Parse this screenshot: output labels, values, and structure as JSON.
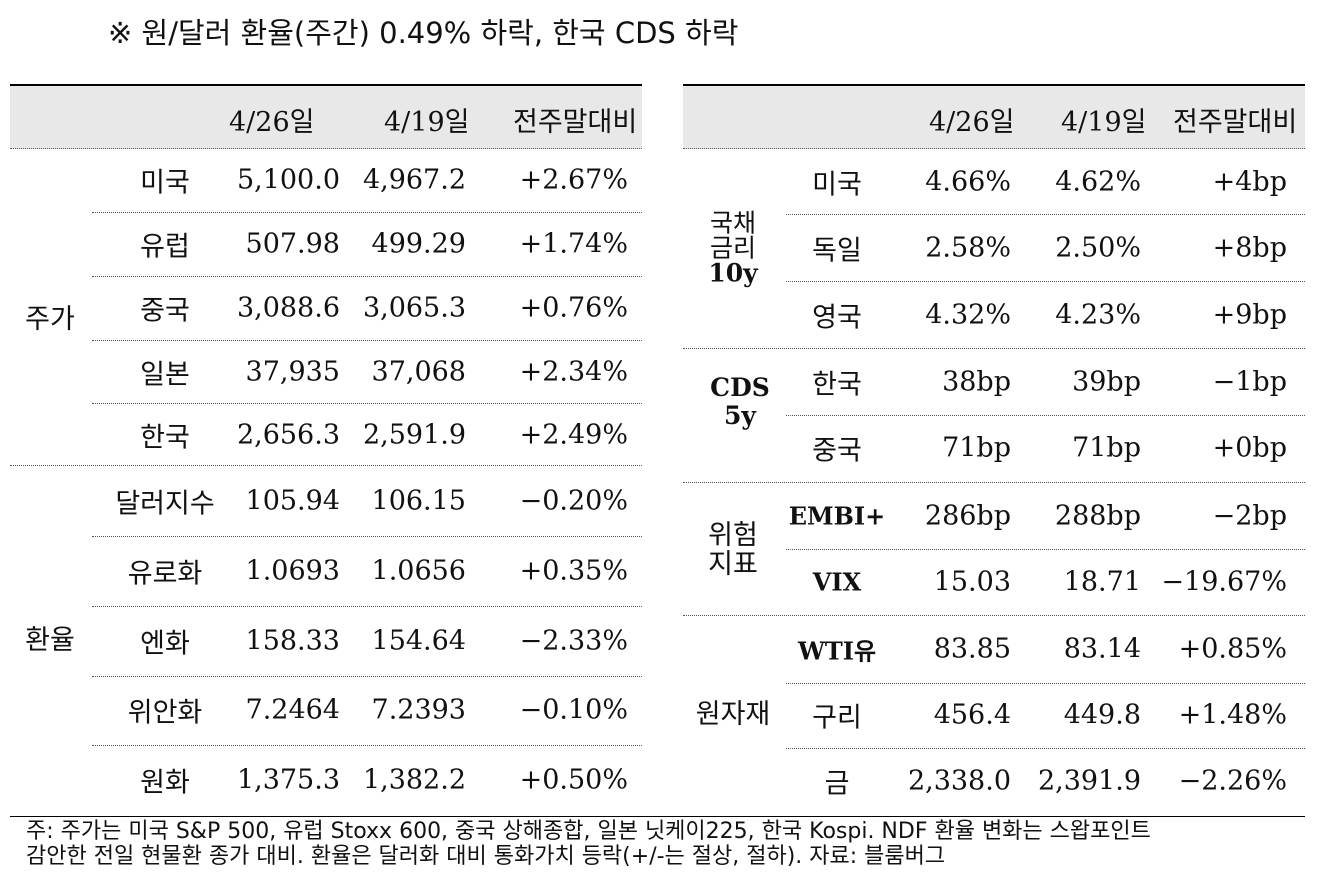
{
  "title": "※ 원/달러 환율(주간) 0.49% 하락, 한국 CDS 하락",
  "headers": {
    "date1": "4/26일",
    "date2": "4/19일",
    "change": "전주말대비"
  },
  "left": {
    "groups": [
      {
        "label": "주가",
        "rows": [
          {
            "name": "미국",
            "v1": "5,100.0",
            "v2": "4,967.2",
            "chg": "+2.67%"
          },
          {
            "name": "유럽",
            "v1": "507.98",
            "v2": "499.29",
            "chg": "+1.74%"
          },
          {
            "name": "중국",
            "v1": "3,088.6",
            "v2": "3,065.3",
            "chg": "+0.76%"
          },
          {
            "name": "일본",
            "v1": "37,935",
            "v2": "37,068",
            "chg": "+2.34%"
          },
          {
            "name": "한국",
            "v1": "2,656.3",
            "v2": "2,591.9",
            "chg": "+2.49%"
          }
        ]
      },
      {
        "label": "환율",
        "rows": [
          {
            "name": "달러지수",
            "v1": "105.94",
            "v2": "106.15",
            "chg": "−0.20%"
          },
          {
            "name": "유로화",
            "v1": "1.0693",
            "v2": "1.0656",
            "chg": "+0.35%"
          },
          {
            "name": "엔화",
            "v1": "158.33",
            "v2": "154.64",
            "chg": "−2.33%"
          },
          {
            "name": "위안화",
            "v1": "7.2464",
            "v2": "7.2393",
            "chg": "−0.10%"
          },
          {
            "name": "원화",
            "v1": "1,375.3",
            "v2": "1,382.2",
            "chg": "+0.50%"
          }
        ]
      }
    ]
  },
  "right": {
    "groups": [
      {
        "label1": "국채",
        "label2": "금리",
        "label3": "10y",
        "rows": [
          {
            "name": "미국",
            "v1": "4.66%",
            "v2": "4.62%",
            "chg": "+4bp"
          },
          {
            "name": "독일",
            "v1": "2.58%",
            "v2": "2.50%",
            "chg": "+8bp"
          },
          {
            "name": "영국",
            "v1": "4.32%",
            "v2": "4.23%",
            "chg": "+9bp"
          }
        ]
      },
      {
        "label1": "CDS",
        "label2": "5y",
        "rows": [
          {
            "name": "한국",
            "v1": "38bp",
            "v2": "39bp",
            "chg": "−1bp"
          },
          {
            "name": "중국",
            "v1": "71bp",
            "v2": "71bp",
            "chg": "+0bp"
          }
        ]
      },
      {
        "label1": "위험",
        "label2": "지표",
        "rows": [
          {
            "name": "EMBI+",
            "v1": "286bp",
            "v2": "288bp",
            "chg": "−2bp"
          },
          {
            "name": "VIX",
            "v1": "15.03",
            "v2": "18.71",
            "chg": "−19.67%"
          }
        ]
      },
      {
        "label": "원자재",
        "rows": [
          {
            "name": "WTI유",
            "v1": "83.85",
            "v2": "83.14",
            "chg": "+0.85%"
          },
          {
            "name": "구리",
            "v1": "456.4",
            "v2": "449.8",
            "chg": "+1.48%"
          },
          {
            "name": "금",
            "v1": "2,338.0",
            "v2": "2,391.9",
            "chg": "−2.26%"
          }
        ]
      }
    ]
  },
  "note": {
    "line1": "주: 주가는 미국 S&P 500, 유럽 Stoxx 600, 중국 상해종합, 일본 닛케이225, 한국 Kospi. NDF 환율 변화는 스왑포인트",
    "line2": "감안한 전일 현물환 종가 대비. 환율은 달러화 대비 통화가치 등락(+/-는 절상, 절하). 자료: 블룸버그"
  }
}
